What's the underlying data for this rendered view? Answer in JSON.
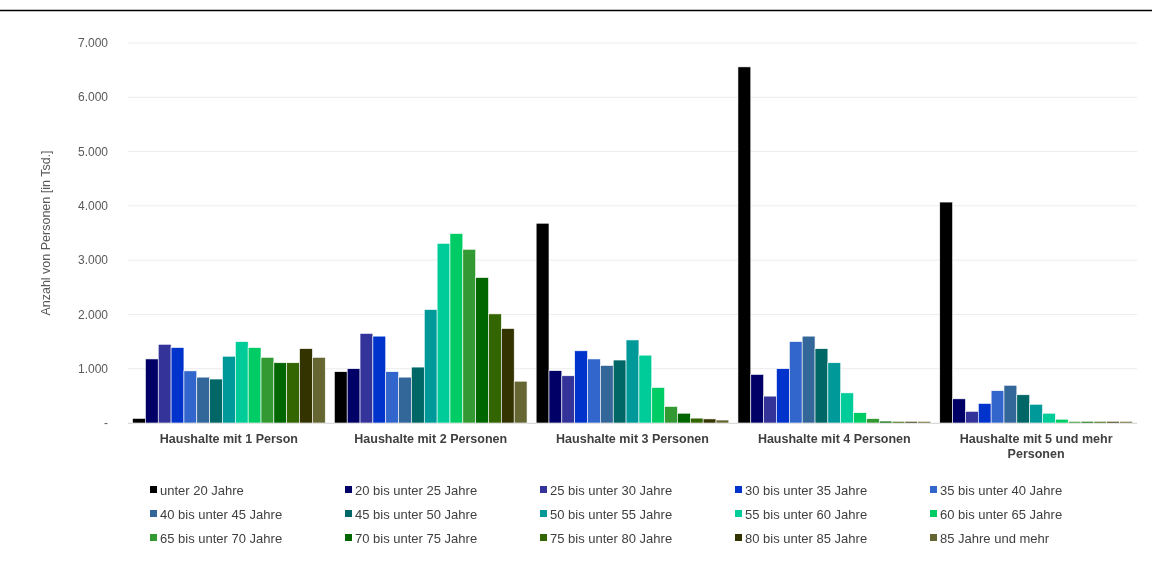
{
  "chart_data": {
    "type": "bar",
    "ylabel": "Anzahl von Personen [in Tsd.]",
    "categories": [
      "Haushalte mit 1 Person",
      "Haushalte mit 2 Personen",
      "Haushalte mit 3 Personen",
      "Haushalte mit 4 Personen",
      "Haushalte mit 5 und mehr Personen"
    ],
    "series": [
      {
        "name": "unter 20 Jahre",
        "color": "#000000",
        "values": [
          85,
          945,
          3680,
          6560,
          4070
        ]
      },
      {
        "name": "20 bis unter 25 Jahre",
        "color": "#000066",
        "values": [
          1180,
          1000,
          965,
          895,
          445
        ]
      },
      {
        "name": "25 bis unter 30 Jahre",
        "color": "#333399",
        "values": [
          1450,
          1650,
          870,
          495,
          215
        ]
      },
      {
        "name": "30 bis unter 35 Jahre",
        "color": "#0033cc",
        "values": [
          1390,
          1600,
          1330,
          1000,
          360
        ]
      },
      {
        "name": "35 bis unter 40 Jahre",
        "color": "#3366cc",
        "values": [
          960,
          945,
          1180,
          1500,
          595
        ]
      },
      {
        "name": "40 bis unter 45 Jahre",
        "color": "#336699",
        "values": [
          845,
          845,
          1060,
          1600,
          695
        ]
      },
      {
        "name": "45 bis unter 50 Jahre",
        "color": "#006666",
        "values": [
          810,
          1030,
          1160,
          1370,
          520
        ]
      },
      {
        "name": "50 bis unter 55 Jahre",
        "color": "#009999",
        "values": [
          1230,
          2090,
          1530,
          1110,
          345
        ]
      },
      {
        "name": "55 bis unter 60 Jahre",
        "color": "#00cc99",
        "values": [
          1500,
          3310,
          1250,
          555,
          180
        ]
      },
      {
        "name": "60 bis unter 65 Jahre",
        "color": "#00cc66",
        "values": [
          1390,
          3490,
          655,
          190,
          70
        ]
      },
      {
        "name": "65 bis unter 70 Jahre",
        "color": "#339933",
        "values": [
          1210,
          3200,
          305,
          80,
          30
        ]
      },
      {
        "name": "70 bis unter 75 Jahre",
        "color": "#006600",
        "values": [
          1110,
          2680,
          180,
          35,
          30
        ]
      },
      {
        "name": "75 bis unter 80 Jahre",
        "color": "#336600",
        "values": [
          1110,
          2010,
          90,
          30,
          30
        ]
      },
      {
        "name": "80 bis unter 85 Jahre",
        "color": "#333300",
        "values": [
          1370,
          1740,
          75,
          30,
          30
        ]
      },
      {
        "name": "85 Jahre und mehr",
        "color": "#666633",
        "values": [
          1210,
          770,
          55,
          30,
          30
        ]
      }
    ],
    "ylim": [
      0,
      7000
    ],
    "yticks": [
      {
        "value": 0,
        "label": "-"
      },
      {
        "value": 1000,
        "label": "1.000"
      },
      {
        "value": 2000,
        "label": "2.000"
      },
      {
        "value": 3000,
        "label": "3.000"
      },
      {
        "value": 4000,
        "label": "4.000"
      },
      {
        "value": 5000,
        "label": "5.000"
      },
      {
        "value": 6000,
        "label": "6.000"
      },
      {
        "value": 7000,
        "label": "7.000"
      }
    ],
    "grid": "y",
    "legend": "bottom"
  }
}
